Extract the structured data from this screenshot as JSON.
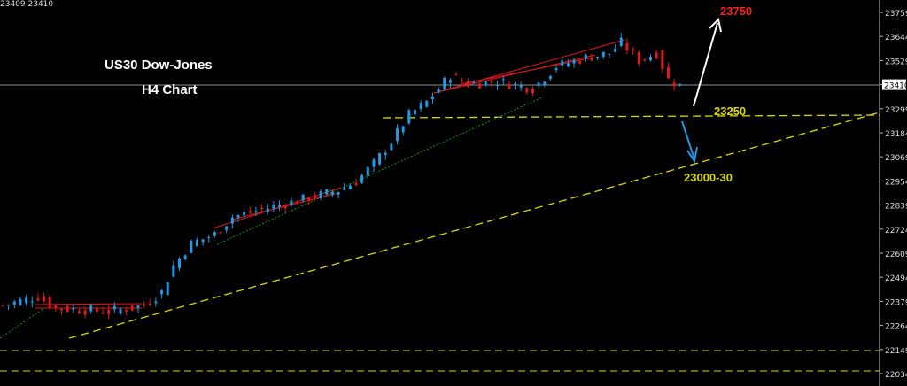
{
  "header": {
    "ohlc_readout": "23409 23410"
  },
  "colors": {
    "background": "#000000",
    "bull": "#1e9be6",
    "bear": "#e01818",
    "support": "#d8d800",
    "trend_red": "#e01818",
    "trend_green": "#1a9a1a",
    "target_up": "#ff2020",
    "arrow_up": "#ffffff",
    "arrow_down": "#1e9be6",
    "axis_text": "#dddddd"
  },
  "chart_data": {
    "type": "candlestick",
    "title": "US30 Dow-Jones",
    "subtitle": "H4 Chart",
    "y_ticks": [
      23759,
      23644,
      23529,
      23410,
      23299,
      23184,
      23069,
      22954,
      22839,
      22724,
      22609,
      22494,
      22379,
      22264,
      22149,
      22034
    ],
    "ylim": [
      22000,
      23800
    ],
    "current_price": 23410,
    "close_path": [
      [
        0,
        22360
      ],
      [
        6,
        22402
      ],
      [
        9,
        22347
      ],
      [
        18,
        22330
      ],
      [
        24,
        22360
      ],
      [
        27,
        22423
      ],
      [
        29,
        22550
      ],
      [
        32,
        22655
      ],
      [
        36,
        22698
      ],
      [
        39,
        22782
      ],
      [
        45,
        22825
      ],
      [
        51,
        22867
      ],
      [
        57,
        22909
      ],
      [
        60,
        22951
      ],
      [
        63,
        23036
      ],
      [
        66,
        23142
      ],
      [
        69,
        23269
      ],
      [
        72,
        23332
      ],
      [
        76,
        23459
      ],
      [
        79,
        23417
      ],
      [
        84,
        23429
      ],
      [
        90,
        23395
      ],
      [
        94,
        23501
      ],
      [
        99,
        23543
      ],
      [
        103,
        23564
      ],
      [
        105,
        23615
      ],
      [
        108,
        23531
      ],
      [
        111,
        23564
      ],
      [
        113,
        23438
      ],
      [
        115,
        23410
      ]
    ],
    "levels": [
      {
        "label": "23250",
        "price": 23250
      },
      {
        "label": "23000-30",
        "price": 23015
      }
    ],
    "target_label": "23750",
    "lower_levels": [
      22149,
      22034
    ]
  }
}
